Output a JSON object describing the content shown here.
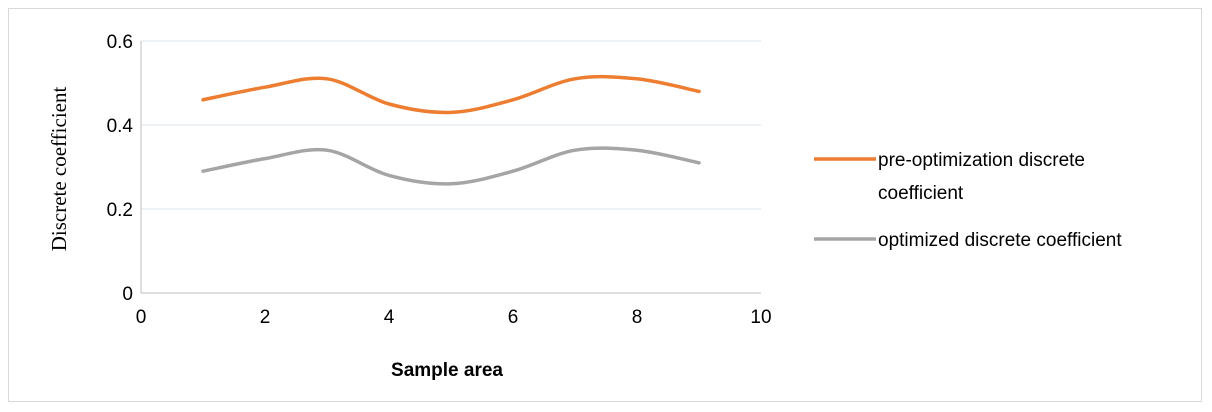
{
  "chart_data": {
    "type": "line",
    "title": "",
    "xlabel": "Sample area",
    "ylabel": "Discrete coefficient",
    "xlim": [
      0,
      10
    ],
    "ylim": [
      0,
      0.6
    ],
    "x_ticks": [
      0,
      2,
      4,
      6,
      8,
      10
    ],
    "y_ticks": [
      0,
      0.2,
      0.4,
      0.6
    ],
    "x_tick_labels": [
      "0",
      "2",
      "4",
      "6",
      "8",
      "10"
    ],
    "y_tick_labels": [
      "0",
      "0.2",
      "0.4",
      "0.6"
    ],
    "grid": "horizontal",
    "legend": "right",
    "series": [
      {
        "name": "pre-optimization discrete coefficient",
        "name_lines": [
          "pre-optimization discrete",
          "coefficient"
        ],
        "color": "#ed7d31",
        "x": [
          1,
          2,
          3,
          4,
          5,
          6,
          7,
          8,
          9
        ],
        "values": [
          0.46,
          0.49,
          0.51,
          0.45,
          0.43,
          0.46,
          0.51,
          0.51,
          0.48
        ]
      },
      {
        "name": "optimized discrete coefficient",
        "name_lines": [
          "optimized discrete coefficient"
        ],
        "color": "#a5a5a5",
        "x": [
          1,
          2,
          3,
          4,
          5,
          6,
          7,
          8,
          9
        ],
        "values": [
          0.29,
          0.32,
          0.34,
          0.28,
          0.26,
          0.29,
          0.34,
          0.34,
          0.31
        ]
      }
    ]
  }
}
